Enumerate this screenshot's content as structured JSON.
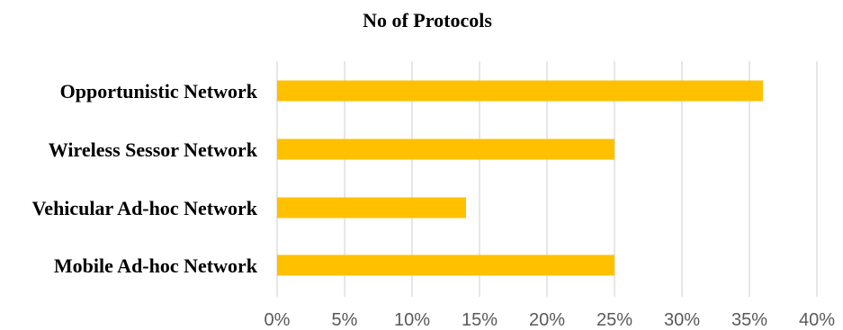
{
  "chart_data": {
    "type": "bar",
    "orientation": "horizontal",
    "title": "No of Protocols",
    "categories": [
      "Opportunistic Network",
      "Wireless Sessor Network",
      "Vehicular Ad-hoc Network",
      "Mobile Ad-hoc Network"
    ],
    "values": [
      36,
      25,
      14,
      25
    ],
    "value_unit": "%",
    "xlim": [
      0,
      40
    ],
    "xticks": [
      "0%",
      "5%",
      "10%",
      "15%",
      "20%",
      "25%",
      "30%",
      "35%",
      "40%"
    ],
    "xlabel": "",
    "ylabel": "",
    "grid": "vertical",
    "legend": "none",
    "bar_color": "#FFC000"
  }
}
